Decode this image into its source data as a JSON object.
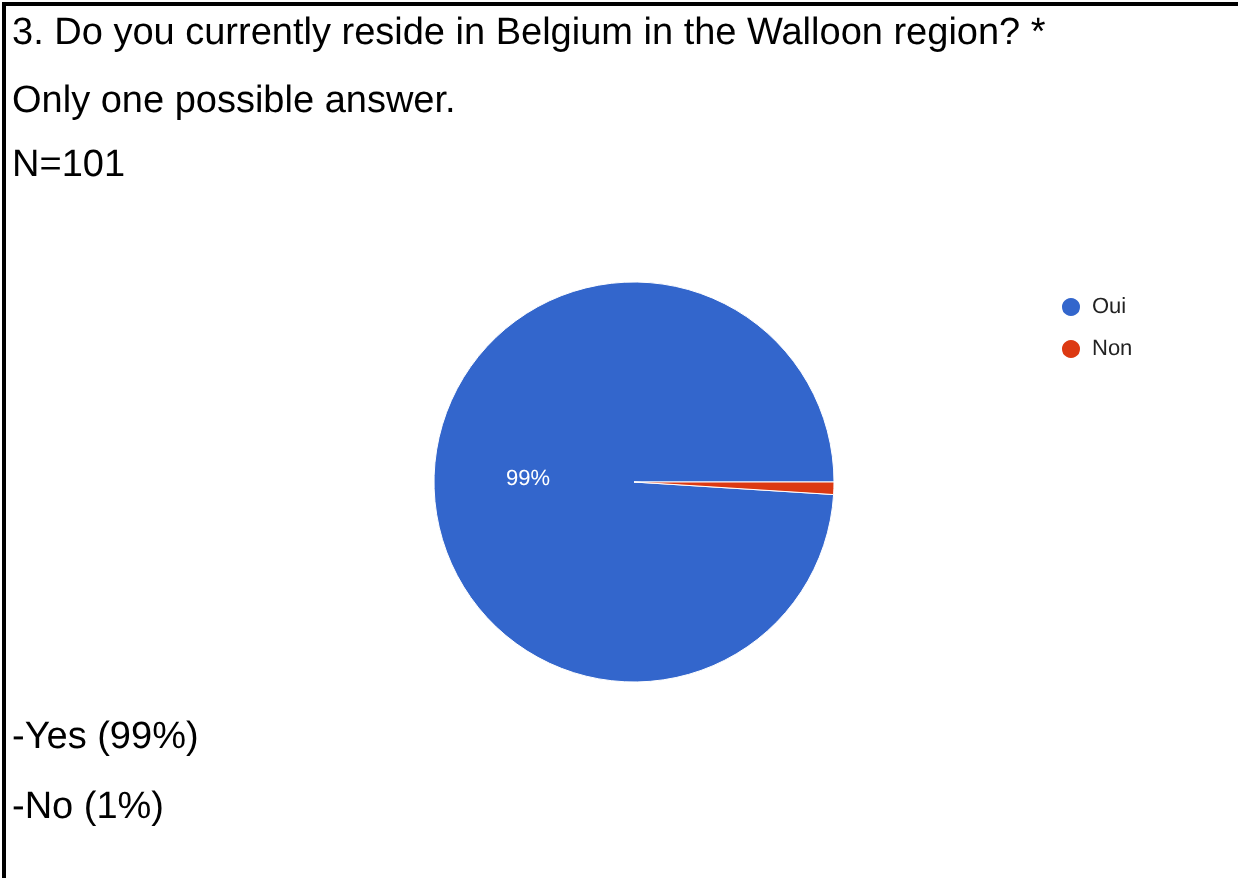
{
  "chart_data": {
    "type": "pie",
    "title": "3. Do you currently reside in Belgium in the Walloon region? *",
    "subtitle": "Only one possible answer.",
    "annotations": [
      "N=101",
      "-Yes (99%)",
      "-No (1%)"
    ],
    "categories": [
      "Oui",
      "Non"
    ],
    "values": [
      99,
      1
    ],
    "colors": [
      "#3366cc",
      "#dc3912"
    ],
    "value_labels": [
      "99%",
      null
    ],
    "legend": "top right"
  }
}
